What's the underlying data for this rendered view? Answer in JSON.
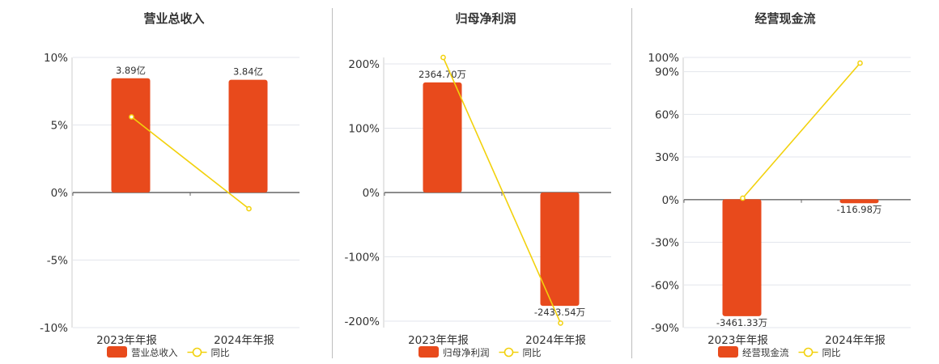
{
  "colors": {
    "bar": "#E84A1C",
    "line": "#F2D10C",
    "grid": "#e3e6ec",
    "axis": "#666666"
  },
  "chart_data": [
    {
      "type": "bar",
      "title": "营业总收入",
      "categories": [
        "2023年年报",
        "2024年年报"
      ],
      "series": [
        {
          "name": "营业总收入",
          "kind": "bar",
          "axis": "secondary",
          "unit": "亿",
          "values": [
            3.89,
            3.84
          ],
          "labels": [
            "3.89亿",
            "3.84亿"
          ]
        },
        {
          "name": "同比",
          "kind": "line",
          "axis": "primary",
          "unit": "%",
          "values": [
            5.6,
            -1.2
          ]
        }
      ],
      "y_ticks": [
        "10%",
        "5%",
        "0%",
        "-5%",
        "-10%"
      ],
      "y_tick_values": [
        10,
        5,
        0,
        -5,
        -10
      ],
      "ylim": [
        -10,
        10
      ],
      "bar_ylim": [
        -4.6,
        4.6
      ],
      "legend": [
        "营业总收入",
        "同比"
      ]
    },
    {
      "type": "bar",
      "title": "归母净利润",
      "categories": [
        "2023年年报",
        "2024年年报"
      ],
      "series": [
        {
          "name": "归母净利润",
          "kind": "bar",
          "axis": "secondary",
          "unit": "万",
          "values": [
            2364.7,
            -2433.54
          ],
          "labels": [
            "2364.70万",
            "-2433.54万"
          ]
        },
        {
          "name": "同比",
          "kind": "line",
          "axis": "primary",
          "unit": "%",
          "values": [
            210,
            -203
          ]
        }
      ],
      "y_ticks": [
        "200%",
        "100%",
        "0%",
        "-100%",
        "-200%"
      ],
      "y_tick_values": [
        200,
        100,
        0,
        -100,
        -200
      ],
      "ylim": [
        -210,
        210
      ],
      "bar_ylim": [
        -2900,
        2900
      ],
      "legend": [
        "归母净利润",
        "同比"
      ]
    },
    {
      "type": "bar",
      "title": "经营现金流",
      "categories": [
        "2023年年报",
        "2024年年报"
      ],
      "series": [
        {
          "name": "经营现金流",
          "kind": "bar",
          "axis": "secondary",
          "unit": "万",
          "values": [
            -3461.33,
            -116.98
          ],
          "labels": [
            "-3461.33万",
            "-116.98万"
          ]
        },
        {
          "name": "同比",
          "kind": "line",
          "axis": "primary",
          "unit": "%",
          "values": [
            1,
            96
          ]
        }
      ],
      "y_ticks": [
        "100%",
        "90%",
        "60%",
        "30%",
        "0%",
        "-30%",
        "-60%",
        "-90%"
      ],
      "y_tick_values": [
        100,
        90,
        60,
        30,
        0,
        -30,
        -60,
        -90
      ],
      "ylim": [
        -90,
        100
      ],
      "bar_ylim": [
        -3800,
        4200
      ],
      "legend": [
        "经营现金流",
        "同比"
      ]
    }
  ]
}
